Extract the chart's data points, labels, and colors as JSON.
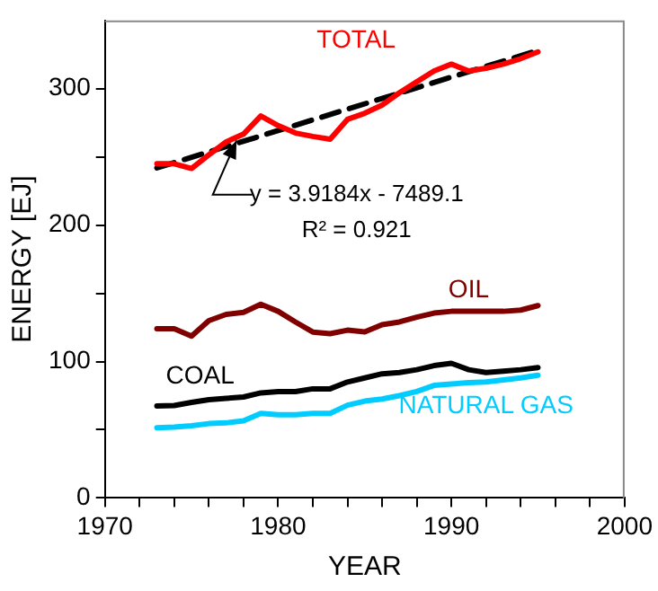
{
  "chart_data": {
    "type": "line",
    "xlabel": "YEAR",
    "ylabel": "ENERGY [EJ]",
    "x": [
      1973,
      1974,
      1975,
      1976,
      1977,
      1978,
      1979,
      1980,
      1981,
      1982,
      1983,
      1984,
      1985,
      1986,
      1987,
      1988,
      1989,
      1990,
      1991,
      1992,
      1993,
      1994,
      1995
    ],
    "series": [
      {
        "name": "TOTAL",
        "color": "#ff0000",
        "values": [
          245,
          245,
          241.5,
          251.5,
          261,
          266.7,
          280,
          273,
          267.5,
          265,
          263,
          277.5,
          282,
          288,
          297,
          305,
          313,
          318,
          313,
          315,
          318,
          322,
          327
        ]
      },
      {
        "name": "OIL",
        "color": "#800000",
        "values": [
          124,
          124,
          118.6,
          130,
          134.6,
          136,
          142,
          136.8,
          129,
          121.6,
          120.4,
          123,
          121.7,
          127,
          129,
          132.5,
          135.5,
          136.8,
          136.8,
          136.8,
          136.8,
          137.7,
          141
        ]
      },
      {
        "name": "COAL",
        "color": "#000000",
        "values": [
          67.5,
          67.8,
          70,
          72,
          73,
          74,
          77,
          78,
          78,
          80,
          80,
          85,
          88,
          91,
          92,
          94,
          97,
          98.7,
          94,
          92,
          93,
          94,
          95.6
        ]
      },
      {
        "name": "NATURAL GAS",
        "color": "#00ccff",
        "values": [
          51.5,
          52,
          53,
          54.5,
          55,
          56.5,
          62,
          61,
          61,
          62,
          62,
          68,
          71,
          72.5,
          75,
          78,
          82.5,
          83.5,
          84.5,
          85,
          86.5,
          88,
          90
        ]
      },
      {
        "type": "line",
        "color": "#000000",
        "line_style": "dashed",
        "x": [
          1973,
          1995
        ],
        "values": [
          241.9,
          328.1
        ]
      }
    ],
    "xlim": [
      1970,
      2000
    ],
    "xticks": [
      1970,
      {
        "value": 1972,
        "label": null
      },
      {
        "value": 1974,
        "label": null
      },
      {
        "value": 1976,
        "label": null
      },
      {
        "value": 1978,
        "label": null
      },
      1980,
      {
        "value": 1982,
        "label": null
      },
      {
        "value": 1984,
        "label": null
      },
      {
        "value": 1986,
        "label": null
      },
      {
        "value": 1988,
        "label": null
      },
      1990,
      {
        "value": 1992,
        "label": null
      },
      {
        "value": 1994,
        "label": null
      },
      {
        "value": 1996,
        "label": null
      },
      {
        "value": 1998,
        "label": null
      },
      2000
    ],
    "ylim": [
      0,
      350
    ],
    "yticks": [
      0,
      {
        "value": 50,
        "label": null
      },
      100,
      {
        "value": 150,
        "label": null
      },
      200,
      {
        "value": 250,
        "label": null
      },
      300
    ],
    "annotations": [
      "y = 3.9184x - 7489.1",
      "R² = 0.921"
    ],
    "grid": false,
    "legend": false,
    "marker": "none",
    "line_style": "solid"
  }
}
